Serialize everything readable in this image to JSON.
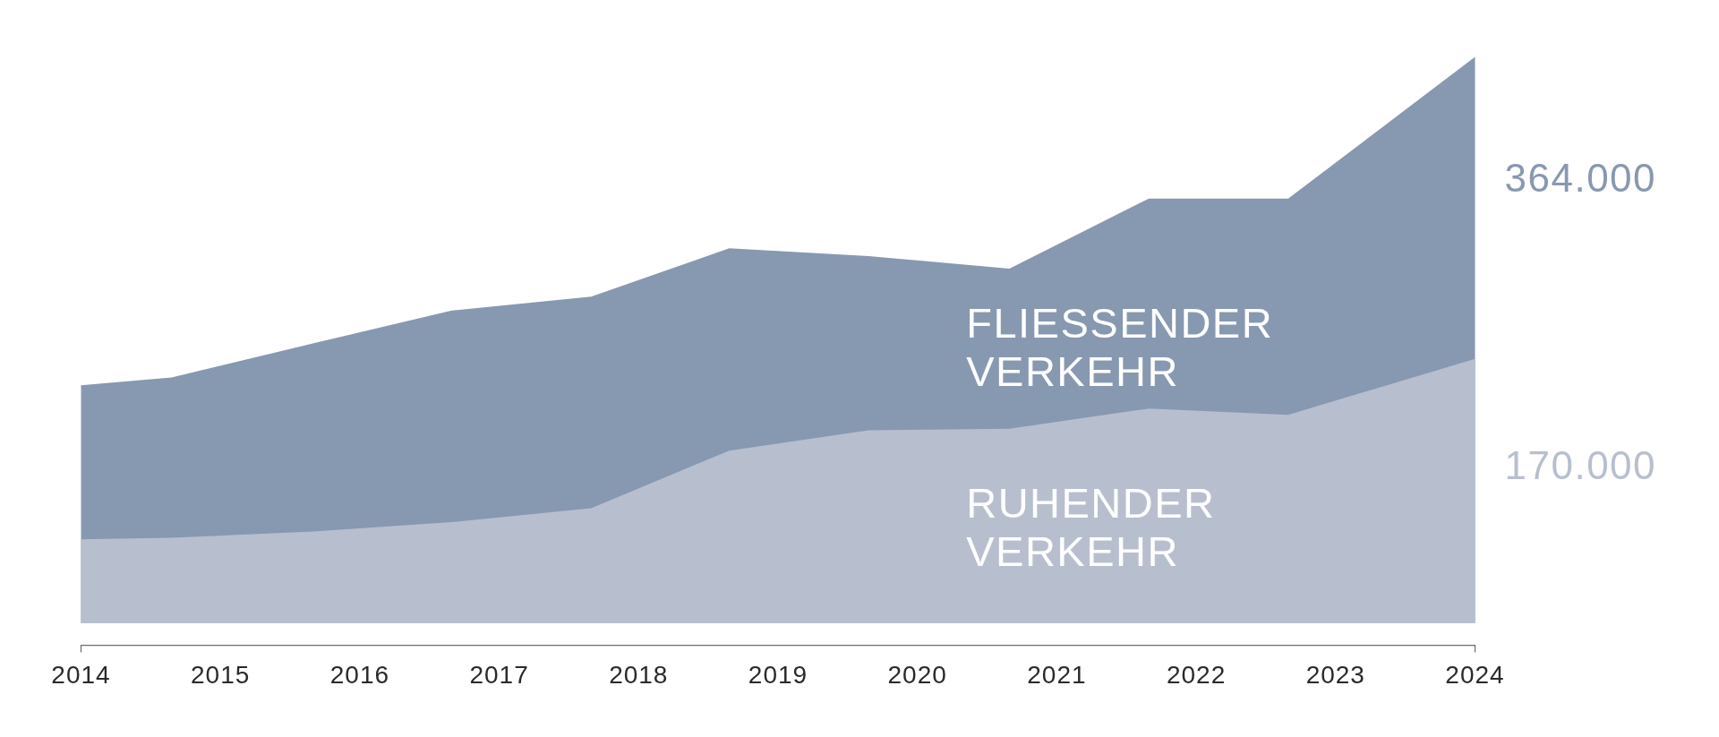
{
  "chart_data": {
    "type": "area",
    "x": [
      2014,
      2014.65,
      2015.67,
      2016.66,
      2017.66,
      2018.65,
      2019.65,
      2020.66,
      2021.66,
      2022.66,
      2024
    ],
    "xlim": [
      2014,
      2024
    ],
    "xticks": [
      2014,
      2015,
      2016,
      2017,
      2018,
      2019,
      2020,
      2021,
      2022,
      2023,
      2024
    ],
    "tick_labels": "x",
    "series": [
      {
        "name": "FLIESSENDER VERKEHR",
        "color": "#8798b1",
        "values": [
          153000,
          158000,
          180000,
          201000,
          210000,
          241000,
          236000,
          228000,
          273000,
          273000,
          364000
        ],
        "value_labels": [
          null,
          null,
          null,
          null,
          null,
          null,
          null,
          null,
          null,
          null,
          "364.000"
        ]
      },
      {
        "name": "RUHENDER VERKEHR",
        "color": "#b7bfcf",
        "values": [
          54000,
          55000,
          59000,
          65000,
          74000,
          111000,
          124000,
          125000,
          138000,
          134000,
          170000
        ],
        "value_labels": [
          null,
          null,
          null,
          null,
          null,
          null,
          null,
          null,
          null,
          null,
          "170.000"
        ]
      }
    ]
  }
}
